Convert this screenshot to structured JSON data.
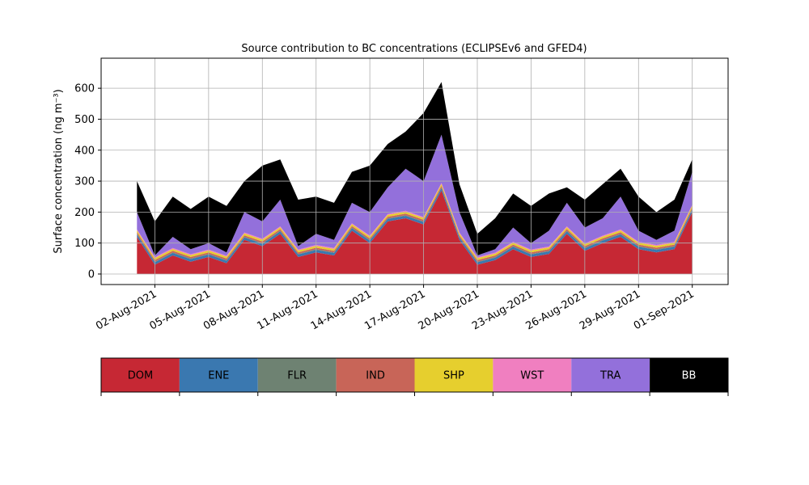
{
  "chart_data": {
    "type": "stacked_area",
    "title": "Source contribution to BC concentrations (ECLIPSEv6 and GFED4)",
    "y_label": "Surface concentration (ng m⁻³)",
    "x": [
      "01-Aug-2021",
      "02-Aug-2021",
      "03-Aug-2021",
      "04-Aug-2021",
      "05-Aug-2021",
      "06-Aug-2021",
      "07-Aug-2021",
      "08-Aug-2021",
      "09-Aug-2021",
      "10-Aug-2021",
      "11-Aug-2021",
      "12-Aug-2021",
      "13-Aug-2021",
      "14-Aug-2021",
      "15-Aug-2021",
      "16-Aug-2021",
      "17-Aug-2021",
      "18-Aug-2021",
      "19-Aug-2021",
      "20-Aug-2021",
      "21-Aug-2021",
      "22-Aug-2021",
      "23-Aug-2021",
      "24-Aug-2021",
      "25-Aug-2021",
      "26-Aug-2021",
      "27-Aug-2021",
      "28-Aug-2021",
      "29-Aug-2021",
      "30-Aug-2021",
      "31-Aug-2021",
      "01-Sep-2021"
    ],
    "xlim": [
      "30-Jul-2021",
      "03-Sep-2021"
    ],
    "xticks": [
      "02-Aug-2021",
      "05-Aug-2021",
      "08-Aug-2021",
      "11-Aug-2021",
      "14-Aug-2021",
      "17-Aug-2021",
      "20-Aug-2021",
      "23-Aug-2021",
      "26-Aug-2021",
      "29-Aug-2021",
      "01-Sep-2021"
    ],
    "ylim": [
      -34,
      697
    ],
    "yticks": [
      0,
      100,
      200,
      300,
      400,
      500,
      600
    ],
    "grid": true,
    "series": [
      {
        "name": "DOM",
        "color": "#c62834",
        "values": [
          120,
          30,
          60,
          40,
          55,
          35,
          110,
          90,
          130,
          55,
          70,
          60,
          140,
          100,
          170,
          180,
          160,
          270,
          110,
          30,
          45,
          80,
          55,
          65,
          130,
          75,
          100,
          120,
          80,
          70,
          80,
          200
        ]
      },
      {
        "name": "ENE",
        "color": "#3a78b0",
        "values": [
          8,
          8,
          8,
          8,
          8,
          8,
          8,
          8,
          8,
          8,
          8,
          8,
          8,
          8,
          8,
          8,
          8,
          8,
          8,
          8,
          8,
          8,
          8,
          8,
          8,
          8,
          8,
          8,
          8,
          8,
          8,
          8
        ]
      },
      {
        "name": "FLR",
        "color": "#6e8272",
        "values": [
          2,
          2,
          2,
          2,
          2,
          2,
          2,
          2,
          2,
          2,
          2,
          2,
          2,
          2,
          2,
          2,
          2,
          2,
          2,
          2,
          2,
          2,
          2,
          2,
          2,
          2,
          2,
          2,
          2,
          2,
          2,
          2
        ]
      },
      {
        "name": "IND",
        "color": "#c86558",
        "values": [
          5,
          5,
          5,
          5,
          5,
          5,
          5,
          5,
          5,
          5,
          5,
          5,
          5,
          5,
          5,
          5,
          5,
          5,
          5,
          5,
          5,
          5,
          5,
          5,
          5,
          5,
          5,
          5,
          5,
          5,
          5,
          5
        ]
      },
      {
        "name": "SHP",
        "color": "#e6cf2e",
        "values": [
          6,
          6,
          6,
          6,
          6,
          6,
          6,
          6,
          6,
          6,
          6,
          6,
          6,
          6,
          6,
          6,
          6,
          6,
          6,
          6,
          6,
          6,
          6,
          6,
          6,
          6,
          6,
          6,
          6,
          6,
          6,
          6
        ]
      },
      {
        "name": "WST",
        "color": "#f07fc0",
        "values": [
          3,
          3,
          3,
          3,
          3,
          3,
          3,
          3,
          3,
          3,
          3,
          3,
          3,
          3,
          3,
          3,
          3,
          3,
          3,
          3,
          3,
          3,
          3,
          3,
          3,
          3,
          3,
          3,
          3,
          3,
          3,
          3
        ]
      },
      {
        "name": "TRA",
        "color": "#9370db",
        "values": [
          56,
          6,
          36,
          16,
          21,
          11,
          66,
          56,
          86,
          11,
          36,
          26,
          66,
          76,
          86,
          136,
          116,
          156,
          66,
          6,
          11,
          46,
          21,
          51,
          76,
          51,
          56,
          106,
          36,
          16,
          36,
          106
        ]
      },
      {
        "name": "BB",
        "color": "#000000",
        "values": [
          100,
          110,
          130,
          130,
          150,
          150,
          100,
          180,
          130,
          150,
          120,
          120,
          100,
          150,
          140,
          120,
          220,
          170,
          90,
          70,
          100,
          110,
          120,
          120,
          50,
          90,
          110,
          90,
          110,
          90,
          100,
          40
        ]
      }
    ]
  }
}
